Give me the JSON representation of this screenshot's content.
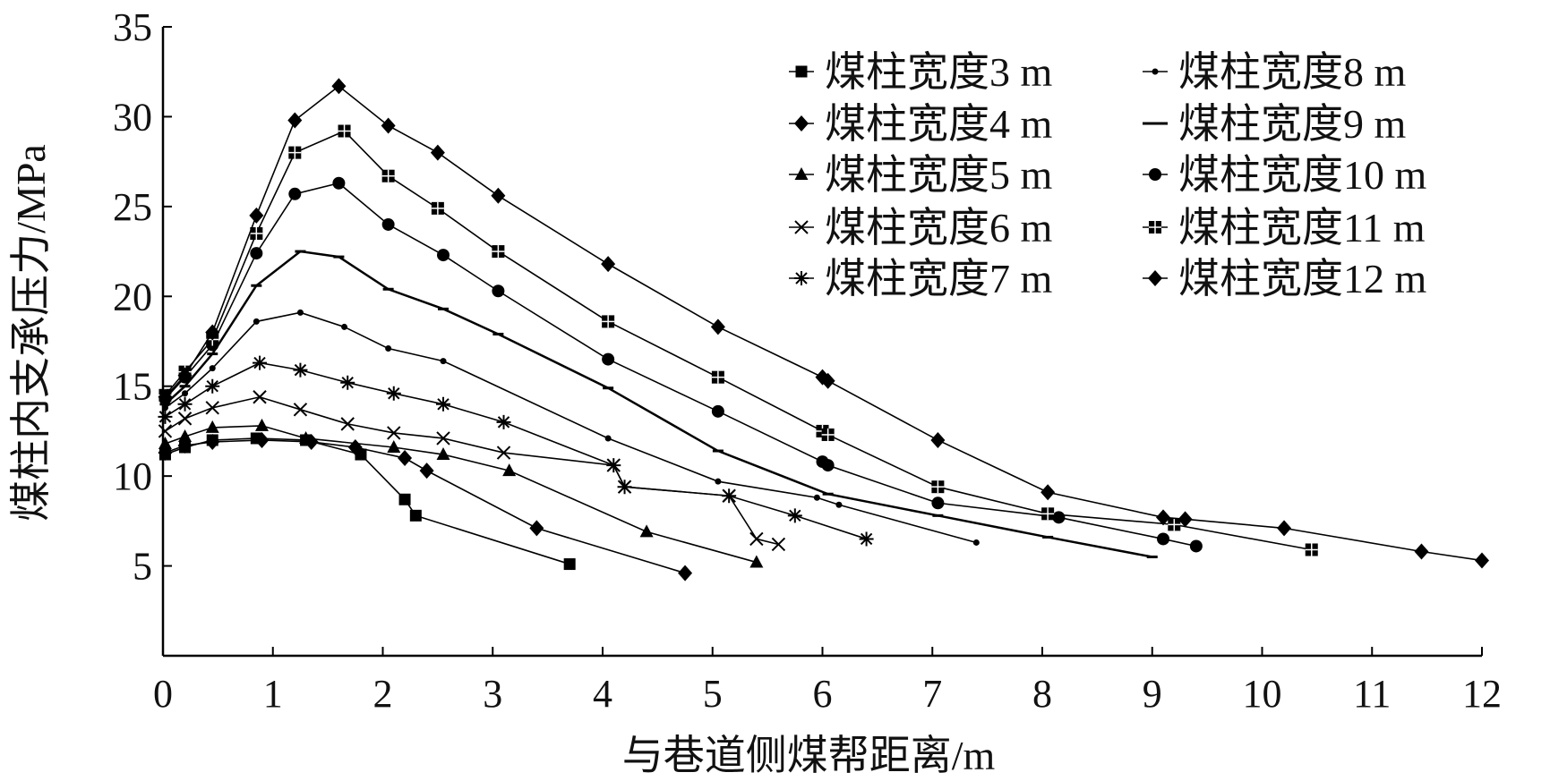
{
  "chart_data": {
    "type": "line",
    "title": "",
    "xlabel": "与巷道侧煤帮距离/m",
    "ylabel": "煤柱内支承压力/MPa",
    "xlim": [
      0,
      12
    ],
    "ylim": [
      0,
      35
    ],
    "xticks": [
      "0",
      "1",
      "2",
      "3",
      "4",
      "5",
      "6",
      "7",
      "8",
      "9",
      "10",
      "11",
      "12"
    ],
    "yticks": [
      "5",
      "10",
      "15",
      "20",
      "25",
      "30",
      "35"
    ],
    "legend_position": "top-right",
    "series": [
      {
        "name": "煤柱宽度3 m",
        "marker": "square",
        "x": [
          0.02,
          0.2,
          0.45,
          0.85,
          1.3,
          1.8,
          2.2,
          2.3,
          3.7
        ],
        "y": [
          11.2,
          11.6,
          12.0,
          12.1,
          12.0,
          11.2,
          8.7,
          7.8,
          5.1
        ]
      },
      {
        "name": "煤柱宽度4 m",
        "marker": "diamond",
        "x": [
          0.02,
          0.2,
          0.45,
          0.9,
          1.35,
          1.75,
          2.2,
          2.4,
          3.4,
          4.75
        ],
        "y": [
          11.3,
          11.7,
          11.9,
          12.0,
          11.9,
          11.6,
          11.0,
          10.3,
          7.1,
          4.6
        ]
      },
      {
        "name": "煤柱宽度5 m",
        "marker": "triangle",
        "x": [
          0.02,
          0.2,
          0.45,
          0.9,
          1.3,
          2.1,
          2.55,
          3.15,
          4.4,
          5.4
        ],
        "y": [
          11.8,
          12.2,
          12.7,
          12.8,
          12.1,
          11.6,
          11.2,
          10.3,
          6.9,
          5.2
        ]
      },
      {
        "name": "煤柱宽度6 m",
        "marker": "x",
        "x": [
          0.02,
          0.2,
          0.45,
          0.88,
          1.25,
          1.68,
          2.1,
          2.55,
          3.1,
          4.1,
          4.2,
          5.15,
          5.4,
          5.6
        ],
        "y": [
          12.5,
          13.2,
          13.8,
          14.4,
          13.7,
          12.9,
          12.4,
          12.1,
          11.3,
          10.6,
          9.4,
          8.9,
          6.5,
          6.2
        ]
      },
      {
        "name": "煤柱宽度7 m",
        "marker": "asterisk",
        "x": [
          0.02,
          0.2,
          0.45,
          0.88,
          1.25,
          1.68,
          2.1,
          2.55,
          3.1,
          4.1,
          4.2,
          5.15,
          5.75,
          6.4
        ],
        "y": [
          13.3,
          14.0,
          15.0,
          16.3,
          15.9,
          15.2,
          14.6,
          14.0,
          13.0,
          10.6,
          9.4,
          8.9,
          7.8,
          6.5
        ]
      },
      {
        "name": "煤柱宽度8 m",
        "marker": "dot",
        "x": [
          0.02,
          0.2,
          0.45,
          0.85,
          1.25,
          1.65,
          2.05,
          2.55,
          4.05,
          5.05,
          5.95,
          6.15,
          7.4
        ],
        "y": [
          13.8,
          14.6,
          16.0,
          18.6,
          19.1,
          18.3,
          17.1,
          16.4,
          12.1,
          9.7,
          8.8,
          8.4,
          6.3
        ]
      },
      {
        "name": "煤柱宽度9 m",
        "marker": "dash",
        "x": [
          0.02,
          0.2,
          0.45,
          0.85,
          1.25,
          1.6,
          2.05,
          2.55,
          3.05,
          4.05,
          5.05,
          6.05,
          7.05,
          8.05,
          9.0
        ],
        "y": [
          14.0,
          15.0,
          16.8,
          20.6,
          22.5,
          22.2,
          20.4,
          19.3,
          17.9,
          14.9,
          11.4,
          9.0,
          7.8,
          6.6,
          5.5
        ]
      },
      {
        "name": "煤柱宽度10 m",
        "marker": "circle",
        "x": [
          0.02,
          0.2,
          0.45,
          0.85,
          1.2,
          1.6,
          2.05,
          2.55,
          3.05,
          4.05,
          5.05,
          6.0,
          6.05,
          7.05,
          8.15,
          9.1,
          9.4
        ],
        "y": [
          14.3,
          15.5,
          17.3,
          22.4,
          25.7,
          26.3,
          24.0,
          22.3,
          20.3,
          16.5,
          13.6,
          10.8,
          10.6,
          8.5,
          7.7,
          6.5,
          6.1
        ]
      },
      {
        "name": "煤柱宽度11 m",
        "marker": "square-cross",
        "x": [
          0.02,
          0.2,
          0.45,
          0.85,
          1.2,
          1.65,
          2.05,
          2.5,
          3.05,
          4.05,
          5.05,
          6.0,
          6.05,
          7.05,
          8.05,
          9.2,
          10.45
        ],
        "y": [
          14.5,
          15.8,
          17.6,
          23.5,
          28.0,
          29.2,
          26.7,
          24.9,
          22.5,
          18.6,
          15.5,
          12.5,
          12.3,
          9.4,
          7.9,
          7.3,
          5.9
        ]
      },
      {
        "name": "煤柱宽度12 m",
        "marker": "diamond",
        "x": [
          0.02,
          0.2,
          0.45,
          0.85,
          1.2,
          1.6,
          2.05,
          2.5,
          3.05,
          4.05,
          5.05,
          6.0,
          6.05,
          7.05,
          8.05,
          9.1,
          9.3,
          10.2,
          11.45,
          12.0
        ],
        "y": [
          14.4,
          15.6,
          18.0,
          24.5,
          29.8,
          31.7,
          29.5,
          28.0,
          25.6,
          21.8,
          18.3,
          15.5,
          15.3,
          12.0,
          9.1,
          7.7,
          7.6,
          7.1,
          5.8,
          5.3
        ]
      }
    ]
  }
}
